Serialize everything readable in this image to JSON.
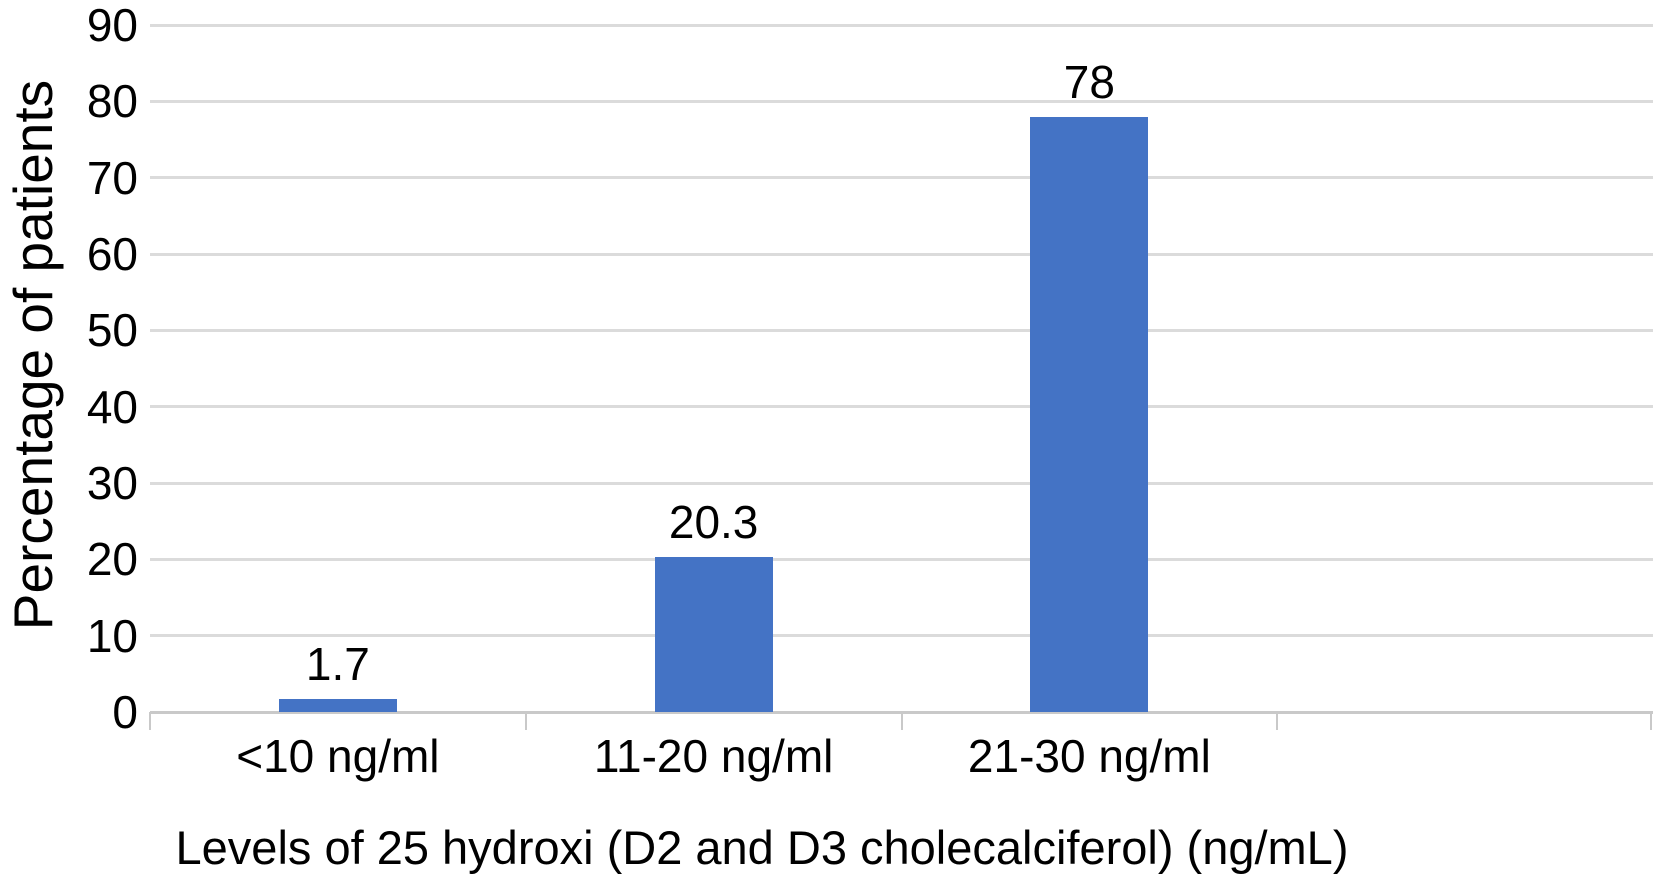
{
  "chart_data": {
    "type": "bar",
    "title": "",
    "categories": [
      "<10 ng/ml",
      "11-20 ng/ml",
      "21-30 ng/ml"
    ],
    "values": [
      1.7,
      20.3,
      78
    ],
    "value_labels": [
      "1.7",
      "20.3",
      "78"
    ],
    "xlabel": "Levels of 25 hydroxi (D2 and D3 cholecalciferol) (ng/mL)",
    "ylabel": "Percentage of patients",
    "ylim": [
      0,
      90
    ],
    "yticks": [
      0,
      10,
      20,
      30,
      40,
      50,
      60,
      70,
      80,
      90
    ],
    "grid": true,
    "legend": false,
    "num_category_slots": 4,
    "colors": {
      "bar": "#4473C5",
      "gridline": "#DBDBDB",
      "axis_line": "#C9C9C9",
      "text": "#000000",
      "background": "#FFFFFF"
    }
  }
}
